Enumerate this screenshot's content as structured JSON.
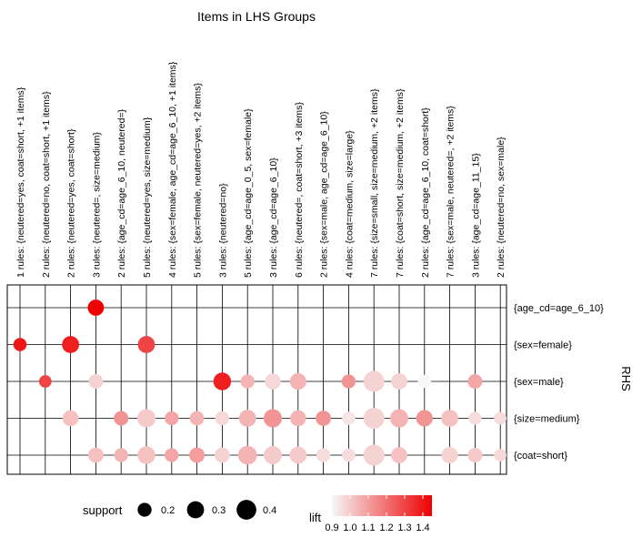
{
  "chart_data": {
    "type": "grouped-matrix",
    "title": "Items in LHS Groups",
    "y_axis_title": "RHS",
    "columns": [
      "1 rules: {neutered=yes, coat=short, +1 items}",
      "2 rules: {neutered=no, coat=short, +1 items}",
      "2 rules: {neutered=yes, coat=short}",
      "3 rules: {neutered=, size=medium}",
      "2 rules: {age_cd=age_6_10, neutered=}",
      "5 rules: {neutered=yes, size=medium}",
      "4 rules: {sex=female, age_cd=age_6_10, +1 items}",
      "5 rules: {sex=female, neutered=yes, +2 items}",
      "3 rules: {neutered=no}",
      "5 rules: {age_cd=age_0_5, sex=female}",
      "3 rules: {age_cd=age_6_10}",
      "6 rules: {neutered=, coat=short, +3 items}",
      "2 rules: {sex=male, age_cd=age_6_10}",
      "4 rules: {coat=medium, size=large}",
      "7 rules: {size=small, size=medium, +2 items}",
      "7 rules: {coat=short, size=medium, +2 items}",
      "2 rules: {age_cd=age_6_10, coat=short}",
      "7 rules: {sex=male, neutered=, +2 items}",
      "3 rules: {age_cd=age_11_15}",
      "2 rules: {neutered=no, sex=male}"
    ],
    "rows": [
      "{age_cd=age_6_10}",
      "{sex=female}",
      "{sex=male}",
      "{size=medium}",
      "{coat=short}"
    ],
    "points": [
      {
        "row": 0,
        "col": 3,
        "support": 0.27,
        "lift": 1.45
      },
      {
        "row": 1,
        "col": 0,
        "support": 0.18,
        "lift": 1.4
      },
      {
        "row": 1,
        "col": 2,
        "support": 0.3,
        "lift": 1.38
      },
      {
        "row": 1,
        "col": 5,
        "support": 0.3,
        "lift": 1.3
      },
      {
        "row": 2,
        "col": 1,
        "support": 0.16,
        "lift": 1.3
      },
      {
        "row": 2,
        "col": 3,
        "support": 0.22,
        "lift": 0.98
      },
      {
        "row": 2,
        "col": 8,
        "support": 0.32,
        "lift": 1.38
      },
      {
        "row": 2,
        "col": 9,
        "support": 0.2,
        "lift": 1.05
      },
      {
        "row": 2,
        "col": 10,
        "support": 0.26,
        "lift": 0.97
      },
      {
        "row": 2,
        "col": 11,
        "support": 0.28,
        "lift": 1.05
      },
      {
        "row": 2,
        "col": 13,
        "support": 0.2,
        "lift": 1.12
      },
      {
        "row": 2,
        "col": 14,
        "support": 0.45,
        "lift": 0.98
      },
      {
        "row": 2,
        "col": 15,
        "support": 0.27,
        "lift": 0.98
      },
      {
        "row": 2,
        "col": 16,
        "support": 0.18,
        "lift": 0.9
      },
      {
        "row": 2,
        "col": 18,
        "support": 0.22,
        "lift": 1.08
      },
      {
        "row": 3,
        "col": 2,
        "support": 0.26,
        "lift": 1.02
      },
      {
        "row": 3,
        "col": 4,
        "support": 0.22,
        "lift": 1.12
      },
      {
        "row": 3,
        "col": 5,
        "support": 0.34,
        "lift": 1.0
      },
      {
        "row": 3,
        "col": 6,
        "support": 0.2,
        "lift": 1.08
      },
      {
        "row": 3,
        "col": 7,
        "support": 0.21,
        "lift": 1.05
      },
      {
        "row": 3,
        "col": 8,
        "support": 0.2,
        "lift": 0.97
      },
      {
        "row": 3,
        "col": 9,
        "support": 0.3,
        "lift": 1.05
      },
      {
        "row": 3,
        "col": 10,
        "support": 0.34,
        "lift": 1.12
      },
      {
        "row": 3,
        "col": 11,
        "support": 0.26,
        "lift": 1.05
      },
      {
        "row": 3,
        "col": 12,
        "support": 0.24,
        "lift": 1.12
      },
      {
        "row": 3,
        "col": 13,
        "support": 0.18,
        "lift": 0.94
      },
      {
        "row": 3,
        "col": 14,
        "support": 0.45,
        "lift": 0.98
      },
      {
        "row": 3,
        "col": 15,
        "support": 0.34,
        "lift": 1.05
      },
      {
        "row": 3,
        "col": 16,
        "support": 0.28,
        "lift": 1.12
      },
      {
        "row": 3,
        "col": 17,
        "support": 0.3,
        "lift": 1.02
      },
      {
        "row": 3,
        "col": 18,
        "support": 0.17,
        "lift": 0.96
      },
      {
        "row": 3,
        "col": 19,
        "support": 0.16,
        "lift": 0.96
      },
      {
        "row": 4,
        "col": 3,
        "support": 0.24,
        "lift": 1.02
      },
      {
        "row": 4,
        "col": 4,
        "support": 0.2,
        "lift": 1.05
      },
      {
        "row": 4,
        "col": 5,
        "support": 0.32,
        "lift": 1.02
      },
      {
        "row": 4,
        "col": 6,
        "support": 0.2,
        "lift": 1.08
      },
      {
        "row": 4,
        "col": 7,
        "support": 0.24,
        "lift": 1.1
      },
      {
        "row": 4,
        "col": 8,
        "support": 0.24,
        "lift": 0.98
      },
      {
        "row": 4,
        "col": 9,
        "support": 0.36,
        "lift": 1.05
      },
      {
        "row": 4,
        "col": 10,
        "support": 0.34,
        "lift": 1.0
      },
      {
        "row": 4,
        "col": 11,
        "support": 0.3,
        "lift": 1.0
      },
      {
        "row": 4,
        "col": 12,
        "support": 0.2,
        "lift": 0.96
      },
      {
        "row": 4,
        "col": 13,
        "support": 0.18,
        "lift": 0.96
      },
      {
        "row": 4,
        "col": 14,
        "support": 0.45,
        "lift": 0.98
      },
      {
        "row": 4,
        "col": 15,
        "support": 0.27,
        "lift": 1.02
      },
      {
        "row": 4,
        "col": 17,
        "support": 0.28,
        "lift": 0.98
      },
      {
        "row": 4,
        "col": 18,
        "support": 0.22,
        "lift": 1.0
      },
      {
        "row": 4,
        "col": 19,
        "support": 0.16,
        "lift": 0.97
      }
    ],
    "support_legend": {
      "title": "support",
      "breaks": [
        0.2,
        0.3,
        0.4
      ]
    },
    "lift_legend": {
      "title": "lift",
      "breaks": [
        0.9,
        1.0,
        1.1,
        1.2,
        1.3,
        1.4
      ],
      "range": [
        0.9,
        1.45
      ]
    },
    "colors": {
      "low": "#f7f7f7",
      "high": "#ee0000",
      "grid": "#000000"
    }
  }
}
